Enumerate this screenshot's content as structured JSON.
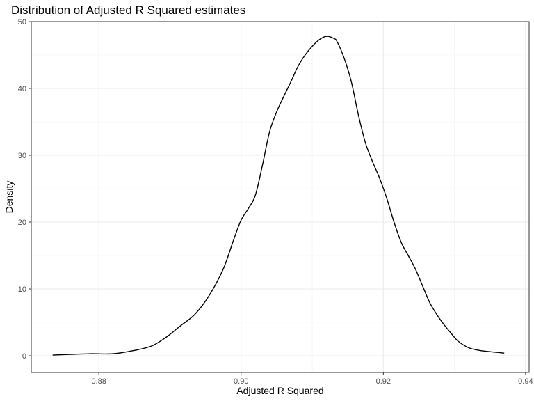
{
  "chart_data": {
    "type": "line",
    "title": "Distribution of Adjusted R Squared estimates",
    "xlabel": "Adjusted R Squared",
    "ylabel": "Density",
    "xlim": [
      0.8705,
      0.9405
    ],
    "ylim": [
      -2.5,
      50
    ],
    "x_ticks": [
      0.88,
      0.9,
      0.92,
      0.94
    ],
    "x_tick_labels": [
      "0.88",
      "0.90",
      "0.92",
      "0.94"
    ],
    "y_ticks": [
      0,
      10,
      20,
      30,
      40,
      50
    ],
    "y_tick_labels": [
      "0",
      "10",
      "20",
      "30",
      "40",
      "50"
    ],
    "grid": true,
    "legend": "none",
    "line_color": "#000000",
    "series": [
      {
        "x": [
          0.8735,
          0.876,
          0.879,
          0.882,
          0.885,
          0.8875,
          0.8895,
          0.8915,
          0.8935,
          0.8955,
          0.8975,
          0.899,
          0.9,
          0.901,
          0.902,
          0.903,
          0.904,
          0.905,
          0.906,
          0.907,
          0.908,
          0.909,
          0.91,
          0.911,
          0.912,
          0.913,
          0.9135,
          0.9145,
          0.9155,
          0.9165,
          0.9175,
          0.9185,
          0.9195,
          0.9205,
          0.9215,
          0.9225,
          0.9235,
          0.9245,
          0.9255,
          0.9265,
          0.9275,
          0.9285,
          0.9295,
          0.9305,
          0.932,
          0.9335,
          0.935,
          0.937
        ],
        "y": [
          0.1,
          0.2,
          0.3,
          0.3,
          0.8,
          1.5,
          2.8,
          4.5,
          6.2,
          9.0,
          13.0,
          17.5,
          20.3,
          22.0,
          24.0,
          28.5,
          33.5,
          36.5,
          38.8,
          41.0,
          43.3,
          45.0,
          46.3,
          47.3,
          47.8,
          47.5,
          47.0,
          44.5,
          41.0,
          36.0,
          31.8,
          29.0,
          26.5,
          23.5,
          20.0,
          17.0,
          15.0,
          13.0,
          10.5,
          8.0,
          6.2,
          4.7,
          3.4,
          2.2,
          1.2,
          0.8,
          0.6,
          0.4
        ]
      }
    ]
  }
}
